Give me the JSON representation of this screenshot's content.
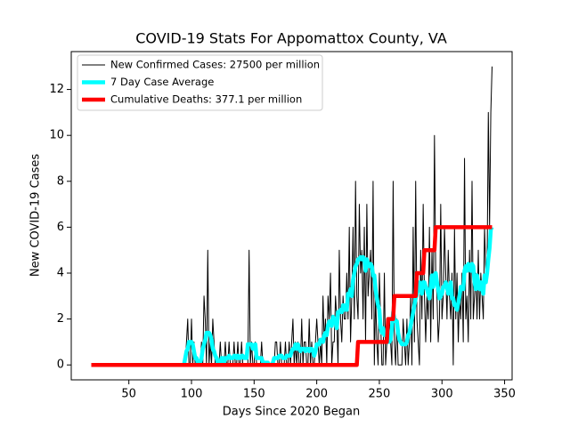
{
  "chart_data": {
    "type": "line",
    "title": "COVID-19 Stats For Appomattox County, VA",
    "xlabel": "Days Since 2020 Began",
    "ylabel": "New COVID-19 Cases",
    "xlim": [
      4,
      356
    ],
    "ylim": [
      -0.65,
      13.65
    ],
    "xticks": [
      50,
      100,
      150,
      200,
      250,
      300,
      350
    ],
    "yticks": [
      0,
      2,
      4,
      6,
      8,
      10,
      12
    ],
    "grid": false,
    "legend": "upper left",
    "x": [
      20,
      21,
      22,
      23,
      24,
      25,
      26,
      27,
      28,
      29,
      30,
      31,
      32,
      33,
      34,
      35,
      36,
      37,
      38,
      39,
      40,
      41,
      42,
      43,
      44,
      45,
      46,
      47,
      48,
      49,
      50,
      51,
      52,
      53,
      54,
      55,
      56,
      57,
      58,
      59,
      60,
      61,
      62,
      63,
      64,
      65,
      66,
      67,
      68,
      69,
      70,
      71,
      72,
      73,
      74,
      75,
      76,
      77,
      78,
      79,
      80,
      81,
      82,
      83,
      84,
      85,
      86,
      87,
      88,
      89,
      90,
      91,
      92,
      93,
      94,
      95,
      96,
      97,
      98,
      99,
      100,
      101,
      102,
      103,
      104,
      105,
      106,
      107,
      108,
      109,
      110,
      111,
      112,
      113,
      114,
      115,
      116,
      117,
      118,
      119,
      120,
      121,
      122,
      123,
      124,
      125,
      126,
      127,
      128,
      129,
      130,
      131,
      132,
      133,
      134,
      135,
      136,
      137,
      138,
      139,
      140,
      141,
      142,
      143,
      144,
      145,
      146,
      147,
      148,
      149,
      150,
      151,
      152,
      153,
      154,
      155,
      156,
      157,
      158,
      159,
      160,
      161,
      162,
      163,
      164,
      165,
      166,
      167,
      168,
      169,
      170,
      171,
      172,
      173,
      174,
      175,
      176,
      177,
      178,
      179,
      180,
      181,
      182,
      183,
      184,
      185,
      186,
      187,
      188,
      189,
      190,
      191,
      192,
      193,
      194,
      195,
      196,
      197,
      198,
      199,
      200,
      201,
      202,
      203,
      204,
      205,
      206,
      207,
      208,
      209,
      210,
      211,
      212,
      213,
      214,
      215,
      216,
      217,
      218,
      219,
      220,
      221,
      222,
      223,
      224,
      225,
      226,
      227,
      228,
      229,
      230,
      231,
      232,
      233,
      234,
      235,
      236,
      237,
      238,
      239,
      240,
      241,
      242,
      243,
      244,
      245,
      246,
      247,
      248,
      249,
      250,
      251,
      252,
      253,
      254,
      255,
      256,
      257,
      258,
      259,
      260,
      261,
      262,
      263,
      264,
      265,
      266,
      267,
      268,
      269,
      270,
      271,
      272,
      273,
      274,
      275,
      276,
      277,
      278,
      279,
      280,
      281,
      282,
      283,
      284,
      285,
      286,
      287,
      288,
      289,
      290,
      291,
      292,
      293,
      294,
      295,
      296,
      297,
      298,
      299,
      300,
      301,
      302,
      303,
      304,
      305,
      306,
      307,
      308,
      309,
      310,
      311,
      312,
      313,
      314,
      315,
      316,
      317,
      318,
      319,
      320,
      321,
      322,
      323,
      324,
      325,
      326,
      327,
      328,
      329,
      330,
      331,
      332,
      333,
      334,
      335,
      336,
      337,
      338,
      339,
      340
    ],
    "series": [
      {
        "name": "New Confirmed Cases: 27500 per million",
        "color": "#000000",
        "values": [
          0,
          0,
          0,
          0,
          0,
          0,
          0,
          0,
          0,
          0,
          0,
          0,
          0,
          0,
          0,
          0,
          0,
          0,
          0,
          0,
          0,
          0,
          0,
          0,
          0,
          0,
          0,
          0,
          0,
          0,
          0,
          0,
          0,
          0,
          0,
          0,
          0,
          0,
          0,
          0,
          0,
          0,
          0,
          0,
          0,
          0,
          0,
          0,
          0,
          0,
          0,
          0,
          0,
          0,
          0,
          0,
          0,
          0,
          0,
          0,
          0,
          0,
          0,
          0,
          0,
          0,
          0,
          0,
          0,
          0,
          0,
          0,
          0,
          0,
          0,
          0,
          1,
          2,
          0,
          0,
          2,
          0,
          1,
          0,
          0,
          0,
          0,
          0,
          1,
          0,
          3,
          2,
          0,
          5,
          0,
          1,
          0,
          2,
          1,
          0,
          0,
          0,
          0,
          1,
          0,
          0,
          0,
          1,
          0,
          0,
          1,
          0,
          0,
          0,
          1,
          0,
          0,
          1,
          0,
          0,
          1,
          0,
          0,
          0,
          0,
          0,
          5,
          0,
          1,
          0,
          0,
          1,
          0,
          0,
          0,
          0,
          1,
          0,
          0,
          0,
          0,
          0,
          0,
          0,
          0,
          0,
          0,
          1,
          1,
          0,
          0,
          1,
          0,
          0,
          0,
          1,
          0,
          0,
          1,
          0,
          1,
          2,
          0,
          1,
          0,
          1,
          0,
          0,
          2,
          0,
          1,
          1,
          0,
          0,
          2,
          0,
          1,
          0,
          0,
          1,
          2,
          1,
          0,
          1,
          0,
          3,
          1,
          2,
          0,
          3,
          2,
          4,
          0,
          1,
          1,
          3,
          2,
          0,
          5,
          2,
          1,
          3,
          2,
          2,
          4,
          2,
          6,
          1,
          3,
          6,
          2,
          8,
          3,
          2,
          7,
          4,
          5,
          2,
          6,
          1,
          7,
          3,
          4,
          5,
          2,
          8,
          0,
          3,
          1,
          0,
          4,
          2,
          0,
          0,
          4,
          0,
          1,
          1,
          2,
          1,
          0,
          8,
          1,
          0,
          2,
          0,
          0,
          0,
          0,
          2,
          1,
          0,
          2,
          0,
          1,
          3,
          0,
          6,
          1,
          8,
          2,
          1,
          0,
          5,
          2,
          7,
          3,
          1,
          3,
          2,
          6,
          1,
          5,
          2,
          10,
          4,
          3,
          1,
          2,
          7,
          2,
          3,
          6,
          4,
          2,
          5,
          3,
          2,
          4,
          0,
          6,
          2,
          4,
          1,
          3,
          2,
          4,
          1,
          9,
          2,
          3,
          1,
          5,
          2,
          8,
          2,
          3,
          4,
          2,
          5,
          2,
          4,
          3,
          2,
          6,
          4,
          4,
          11,
          6,
          11,
          13
        ]
      },
      {
        "name": "7 Day Case Average",
        "color": "#00ffff",
        "values": [
          null,
          null,
          null,
          null,
          null,
          null,
          null,
          null,
          null,
          null,
          null,
          null,
          null,
          null,
          null,
          null,
          null,
          null,
          null,
          null,
          null,
          null,
          null,
          null,
          null,
          null,
          null,
          null,
          null,
          null,
          null,
          null,
          null,
          null,
          null,
          null,
          null,
          null,
          null,
          null,
          null,
          null,
          null,
          null,
          null,
          null,
          null,
          null,
          null,
          null,
          null,
          null,
          null,
          null,
          null,
          null,
          null,
          null,
          null,
          null,
          null,
          null,
          null,
          null,
          null,
          null,
          null,
          null,
          null,
          null,
          null,
          null,
          null,
          null,
          0,
          0.3,
          0.6,
          0.7,
          1,
          1,
          1,
          0.9,
          0.6,
          0.3,
          0.3,
          0.1,
          0.1,
          0.1,
          0.3,
          0.7,
          0.9,
          1.1,
          1.4,
          1.4,
          1.4,
          1.3,
          1.1,
          0.7,
          0.6,
          0.4,
          0.3,
          0.1,
          0.1,
          0.1,
          0.3,
          0.3,
          0.1,
          0.3,
          0.3,
          0.3,
          0.4,
          0.3,
          0.3,
          0.3,
          0.4,
          0.4,
          0.3,
          0.4,
          0.3,
          0.3,
          0.4,
          0.4,
          0.3,
          0.3,
          0.3,
          0.9,
          0.9,
          0.9,
          0.9,
          0.7,
          0.7,
          0.9,
          0.3,
          0.3,
          0.3,
          0.3,
          0.3,
          0.1,
          0.1,
          0.1,
          0.1,
          0.1,
          0,
          0,
          0,
          0.1,
          0.3,
          0.3,
          0.3,
          0.3,
          0.4,
          0.4,
          0.4,
          0.3,
          0.3,
          0.3,
          0.4,
          0.4,
          0.4,
          0.4,
          0.6,
          0.7,
          0.7,
          0.9,
          0.7,
          0.9,
          0.7,
          0.6,
          0.7,
          0.7,
          0.7,
          0.6,
          0.7,
          0.7,
          0.6,
          0.7,
          0.7,
          0.6,
          0.4,
          0.6,
          0.9,
          0.9,
          0.9,
          1.1,
          1.1,
          1,
          1.3,
          1.4,
          1.3,
          1.7,
          1.9,
          1.9,
          1.7,
          2.1,
          2,
          1.9,
          1.6,
          2.3,
          2.3,
          2.4,
          2.3,
          2.6,
          2.4,
          2.6,
          2.4,
          3.1,
          3.1,
          3.3,
          3,
          3.7,
          4,
          4.3,
          4.4,
          4.6,
          4.6,
          4.7,
          4.6,
          4.7,
          4.6,
          4.1,
          4.6,
          4.4,
          4.3,
          4.4,
          4.3,
          3.9,
          3.9,
          3.3,
          2.9,
          2.6,
          2.4,
          1.6,
          1.4,
          1.6,
          1.3,
          1.3,
          1.4,
          1,
          1,
          1.1,
          1.6,
          2.3,
          2,
          1.9,
          1.9,
          1.4,
          1.1,
          1,
          0.9,
          0.9,
          0.9,
          0.9,
          1,
          1.3,
          1.4,
          1.7,
          2,
          2.3,
          2.6,
          2.9,
          3.1,
          3.3,
          3.6,
          3.3,
          3.1,
          3.6,
          3.6,
          3.4,
          3.3,
          3.1,
          2.9,
          3.4,
          3.9,
          3.4,
          3.9,
          4,
          3.6,
          3.3,
          2.9,
          3,
          3.1,
          3.4,
          3.4,
          3.6,
          3.4,
          3.1,
          3.3,
          3.6,
          2.9,
          2.9,
          2.6,
          2.6,
          2.4,
          2.7,
          3,
          3.4,
          3.4,
          3.3,
          4.1,
          4.3,
          4.1,
          4.4,
          4.3,
          4.1,
          4.4,
          4.3,
          3.6,
          3.3,
          3.9,
          3.6,
          3.3,
          3.6,
          3.3,
          3.1,
          3.9,
          3.6,
          4,
          4.6,
          5.1,
          5.9,
          6
        ]
      },
      {
        "name": "Cumulative Deaths: 377.1 per million",
        "color": "#ff0000",
        "values": [
          0,
          0,
          0,
          0,
          0,
          0,
          0,
          0,
          0,
          0,
          0,
          0,
          0,
          0,
          0,
          0,
          0,
          0,
          0,
          0,
          0,
          0,
          0,
          0,
          0,
          0,
          0,
          0,
          0,
          0,
          0,
          0,
          0,
          0,
          0,
          0,
          0,
          0,
          0,
          0,
          0,
          0,
          0,
          0,
          0,
          0,
          0,
          0,
          0,
          0,
          0,
          0,
          0,
          0,
          0,
          0,
          0,
          0,
          0,
          0,
          0,
          0,
          0,
          0,
          0,
          0,
          0,
          0,
          0,
          0,
          0,
          0,
          0,
          0,
          0,
          0,
          0,
          0,
          0,
          0,
          0,
          0,
          0,
          0,
          0,
          0,
          0,
          0,
          0,
          0,
          0,
          0,
          0,
          0,
          0,
          0,
          0,
          0,
          0,
          0,
          0,
          0,
          0,
          0,
          0,
          0,
          0,
          0,
          0,
          0,
          0,
          0,
          0,
          0,
          0,
          0,
          0,
          0,
          0,
          0,
          0,
          0,
          0,
          0,
          0,
          0,
          0,
          0,
          0,
          0,
          0,
          0,
          0,
          0,
          0,
          0,
          0,
          0,
          0,
          0,
          0,
          0,
          0,
          0,
          0,
          0,
          0,
          0,
          0,
          0,
          0,
          0,
          0,
          0,
          0,
          0,
          0,
          0,
          0,
          0,
          0,
          0,
          0,
          0,
          0,
          0,
          0,
          0,
          0,
          0,
          0,
          0,
          0,
          0,
          0,
          0,
          0,
          0,
          0,
          0,
          0,
          0,
          0,
          0,
          0,
          0,
          0,
          0,
          0,
          0,
          0,
          0,
          0,
          0,
          0,
          0,
          0,
          0,
          0,
          0,
          0,
          0,
          0,
          0,
          0,
          0,
          0,
          0,
          0,
          0,
          0,
          0,
          0,
          1,
          1,
          1,
          1,
          1,
          1,
          1,
          1,
          1,
          1,
          1,
          1,
          1,
          1,
          1,
          1,
          1,
          1,
          1,
          1,
          1,
          1,
          1,
          1,
          2,
          2,
          2,
          2,
          2,
          3,
          3,
          3,
          3,
          3,
          3,
          3,
          3,
          3,
          3,
          3,
          3,
          3,
          3,
          3,
          3,
          3,
          3,
          4,
          4,
          4,
          4,
          4,
          4,
          5,
          5,
          5,
          5,
          5,
          5,
          5,
          5,
          5,
          6,
          6,
          6,
          6,
          6,
          6,
          6,
          6,
          6,
          6,
          6,
          6,
          6,
          6,
          6,
          6,
          6,
          6,
          6,
          6,
          6,
          6,
          6,
          6,
          6,
          6,
          6,
          6,
          6,
          6,
          6,
          6,
          6,
          6,
          6,
          6,
          6,
          6,
          6,
          6,
          6,
          6,
          6,
          6,
          6,
          6
        ]
      }
    ]
  }
}
